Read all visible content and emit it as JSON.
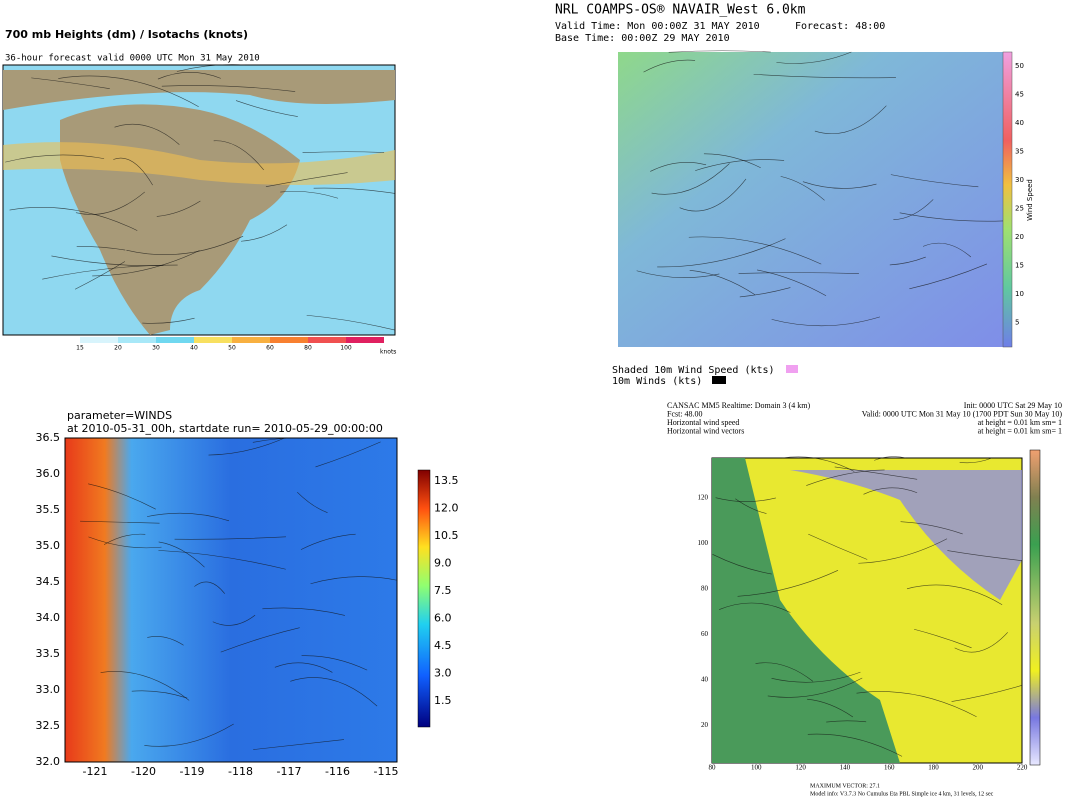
{
  "panels": [
    {
      "title": "700 mb Heights (dm) / Isotachs (knots)",
      "subtitle": "36-hour forecast valid 0000 UTC Mon 31 May 2010",
      "colorbar_labels": [
        "15",
        "20",
        "30",
        "40",
        "50",
        "60",
        "80",
        "100"
      ],
      "colorbar_unit": "knots"
    },
    {
      "title": "NRL COAMPS-OS® NAVAIR_West 6.0km",
      "valid_time": "Valid Time: Mon 00:00Z 31 MAY 2010",
      "forecast": "Forecast: 48:00",
      "base_time": "Base Time: 00:00Z 29 MAY 2010",
      "colorbar_labels": [
        "50",
        "45",
        "40",
        "35",
        "30",
        "25",
        "20",
        "15",
        "10",
        "5"
      ],
      "colorbar_title": "Wind Speed",
      "legend": [
        "Shaded 10m Wind Speed (kts)",
        "10m Winds (kts)"
      ]
    },
    {
      "title": "parameter=WINDS",
      "subtitle": "at 2010-05-31_00h, startdate run= 2010-05-29_00:00:00",
      "yticks": [
        "36.5",
        "36.0",
        "35.5",
        "35.0",
        "34.5",
        "34.0",
        "33.5",
        "33.0",
        "32.5",
        "32.0"
      ],
      "xticks": [
        "-121",
        "-120",
        "-119",
        "-118",
        "-117",
        "-116",
        "-115"
      ],
      "colorbar_labels": [
        "13.5",
        "12.0",
        "10.5",
        "9.0",
        "7.5",
        "6.0",
        "4.5",
        "3.0",
        "1.5"
      ]
    },
    {
      "header_lines": [
        "CANSAC MM5 Realtime: Domain 3  (4 km)",
        "Fcst:  48.00",
        "Horizontal wind speed",
        "Horizontal wind vectors"
      ],
      "header_right": [
        "Init: 0000 UTC Sat 29 May 10",
        "Valid: 0000 UTC Mon 31 May 10 (1700 PDT Sun 30 May 10)",
        "at height =  0.01 km          sm= 1",
        "at height =  0.01 km          sm= 1"
      ],
      "yticks": [
        "120",
        "100",
        "80",
        "60",
        "40",
        "20"
      ],
      "xticks": [
        "80",
        "100",
        "120",
        "140",
        "160",
        "180",
        "200",
        "220"
      ],
      "footer": [
        "MAXIMUM VECTOR:  27.1",
        "Model info: V3.7.3  No Cumulus  Eta PBL   Simple ice    4 km, 31 levels,  12 sec"
      ]
    }
  ]
}
